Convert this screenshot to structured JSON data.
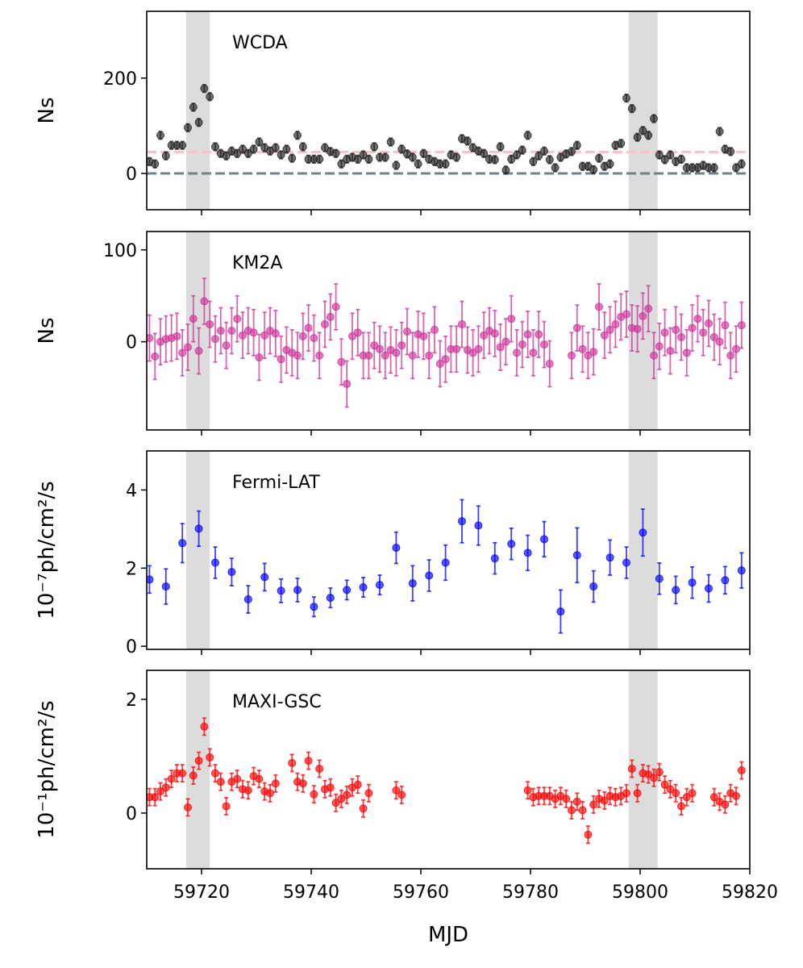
{
  "shaded_spans": [
    [
      59717.2,
      59721.5
    ],
    [
      59797.9,
      59803.2
    ]
  ],
  "chart_data": [
    {
      "type": "scatter",
      "label": "WCDA",
      "ylabel": "Ns",
      "color": "#222222",
      "xlim": [
        59710,
        59820
      ],
      "xticks": [
        59720,
        59740,
        59760,
        59780,
        59800,
        59820
      ],
      "ylim": [
        -76,
        340
      ],
      "yticks": [
        0,
        200
      ],
      "error": 8,
      "hlines": [
        {
          "value": 0,
          "color": "#708090"
        },
        {
          "value": 45,
          "color": "#ffc0cb"
        }
      ],
      "x": [
        59710.5,
        59711.5,
        59712.5,
        59713.5,
        59714.5,
        59715.5,
        59716.5,
        59717.5,
        59718.5,
        59719.5,
        59720.5,
        59721.5,
        59722.5,
        59723.5,
        59724.5,
        59725.5,
        59726.5,
        59727.5,
        59728.5,
        59729.5,
        59730.5,
        59731.5,
        59732.5,
        59733.5,
        59734.5,
        59735.5,
        59736.5,
        59737.5,
        59738.5,
        59739.5,
        59740.5,
        59741.5,
        59742.5,
        59743.5,
        59744.5,
        59745.5,
        59746.5,
        59747.5,
        59748.5,
        59749.5,
        59750.5,
        59751.5,
        59752.5,
        59753.5,
        59754.5,
        59755.5,
        59756.5,
        59757.5,
        59758.5,
        59759.5,
        59760.5,
        59761.5,
        59762.5,
        59763.5,
        59764.5,
        59765.5,
        59766.5,
        59767.5,
        59768.5,
        59769.5,
        59770.5,
        59771.5,
        59772.5,
        59773.5,
        59774.5,
        59775.5,
        59776.5,
        59777.5,
        59778.5,
        59779.5,
        59780.5,
        59781.5,
        59782.5,
        59783.5,
        59784.5,
        59785.5,
        59786.5,
        59787.5,
        59788.5,
        59789.5,
        59790.5,
        59791.5,
        59792.5,
        59793.5,
        59794.5,
        59795.5,
        59796.5,
        59797.5,
        59798.5,
        59799.5,
        59800.5,
        59801.5,
        59802.5,
        59803.5,
        59804.5,
        59805.5,
        59806.5,
        59807.5,
        59808.5,
        59809.5,
        59810.5,
        59811.5,
        59812.5,
        59813.5,
        59814.5,
        59815.5,
        59816.5,
        59817.5,
        59818.5
      ],
      "values": [
        25,
        20,
        80,
        37,
        59,
        59,
        59,
        96,
        139,
        107,
        178,
        161,
        56,
        42,
        37,
        47,
        42,
        51,
        42,
        51,
        66,
        54,
        47,
        54,
        39,
        51,
        32,
        80,
        56,
        30,
        30,
        30,
        54,
        46,
        42,
        20,
        30,
        34,
        30,
        39,
        30,
        56,
        34,
        34,
        66,
        17,
        51,
        41,
        34,
        20,
        42,
        30,
        25,
        20,
        20,
        39,
        34,
        73,
        68,
        54,
        47,
        42,
        30,
        29,
        56,
        7,
        30,
        39,
        49,
        80,
        25,
        37,
        47,
        29,
        12,
        34,
        41,
        46,
        59,
        15,
        15,
        8,
        32,
        15,
        20,
        59,
        63,
        158,
        136,
        76,
        90,
        80,
        115,
        39,
        29,
        39,
        25,
        30,
        12,
        12,
        12,
        17,
        12,
        12,
        88,
        51,
        46,
        12,
        20
      ]
    },
    {
      "type": "scatter",
      "label": "KM2A",
      "ylabel": "Ns",
      "color": "#cc3399",
      "xlim": [
        59710,
        59820
      ],
      "xticks": [
        59720,
        59740,
        59760,
        59780,
        59800,
        59820
      ],
      "ylim": [
        -96,
        120
      ],
      "yticks": [
        0,
        100
      ],
      "error": 25,
      "x": [
        59710.5,
        59711.5,
        59712.5,
        59713.5,
        59714.5,
        59715.5,
        59716.5,
        59717.5,
        59718.5,
        59719.5,
        59720.5,
        59721.5,
        59722.5,
        59723.5,
        59724.5,
        59725.5,
        59726.5,
        59727.5,
        59728.5,
        59729.5,
        59730.5,
        59731.5,
        59732.5,
        59733.5,
        59734.5,
        59735.5,
        59736.5,
        59737.5,
        59738.5,
        59739.5,
        59740.5,
        59741.5,
        59742.5,
        59743.5,
        59744.5,
        59745.5,
        59746.5,
        59747.5,
        59748.5,
        59749.5,
        59750.5,
        59751.5,
        59752.5,
        59753.5,
        59754.5,
        59755.5,
        59756.5,
        59757.5,
        59758.5,
        59759.5,
        59760.5,
        59761.5,
        59762.5,
        59763.5,
        59764.5,
        59765.5,
        59766.5,
        59767.5,
        59768.5,
        59769.5,
        59770.5,
        59771.5,
        59772.5,
        59773.5,
        59774.5,
        59775.5,
        59776.5,
        59777.5,
        59778.5,
        59779.5,
        59780.5,
        59781.5,
        59782.5,
        59783.5,
        59784.5,
        59785.5,
        59786.5,
        59787.5,
        59788.5,
        59789.5,
        59790.5,
        59791.5,
        59792.5,
        59793.5,
        59794.5,
        59795.5,
        59796.5,
        59797.5,
        59798.5,
        59799.5,
        59800.5,
        59801.5,
        59802.5,
        59803.5,
        59804.5,
        59805.5,
        59806.5,
        59807.5,
        59808.5,
        59809.5,
        59810.5,
        59811.5,
        59812.5,
        59813.5,
        59814.5,
        59815.5,
        59816.5,
        59817.5,
        59818.5
      ],
      "values": [
        4,
        -16,
        0,
        3,
        4,
        6,
        -12,
        -6,
        25,
        -10,
        44,
        19,
        3,
        12,
        -4,
        12,
        25,
        7,
        12,
        10,
        -17,
        7,
        12,
        9,
        -19,
        -9,
        -12,
        -15,
        6,
        15,
        4,
        -15,
        19,
        27,
        38,
        -22,
        -46,
        6,
        10,
        -15,
        -15,
        -4,
        -8,
        -15,
        -9,
        -12,
        -4,
        11,
        -15,
        8,
        6,
        -15,
        13,
        -24,
        -19,
        -8,
        -8,
        19,
        -9,
        -12,
        -8,
        7,
        12,
        9,
        -6,
        0,
        25,
        -12,
        -3,
        8,
        -12,
        8,
        -3,
        -24,
        null,
        null,
        null,
        -15,
        15,
        -8,
        -15,
        -11,
        38,
        7,
        13,
        19,
        27,
        30,
        15,
        14,
        28,
        36,
        -15,
        -5,
        10,
        -10,
        13,
        5,
        -12,
        15,
        25,
        10,
        20,
        5,
        0,
        18,
        -15,
        -8,
        18
      ]
    },
    {
      "type": "scatter",
      "label": "Fermi-LAT",
      "ylabel": "10⁻⁷ph/cm²/s",
      "color": "#0000ff",
      "xlim": [
        59710,
        59820
      ],
      "xticks": [
        59720,
        59740,
        59760,
        59780,
        59800,
        59820
      ],
      "ylim": [
        -0.08,
        5
      ],
      "yticks": [
        0,
        2,
        4
      ],
      "x": [
        59710.5,
        59713.5,
        59716.5,
        59719.5,
        59722.5,
        59725.5,
        59728.5,
        59731.5,
        59734.5,
        59737.5,
        59740.5,
        59743.5,
        59746.5,
        59749.5,
        59752.5,
        59755.5,
        59758.5,
        59761.5,
        59764.5,
        59767.5,
        59770.5,
        59773.5,
        59776.5,
        59779.5,
        59782.5,
        59785.5,
        59788.5,
        59791.5,
        59794.5,
        59797.5,
        59800.5,
        59803.5,
        59806.5,
        59809.5,
        59812.5,
        59815.5,
        59818.5
      ],
      "values": [
        1.71,
        1.53,
        2.64,
        3.01,
        2.14,
        1.9,
        1.2,
        1.77,
        1.42,
        1.44,
        1.01,
        1.24,
        1.44,
        1.51,
        1.57,
        2.52,
        1.61,
        1.81,
        2.14,
        3.2,
        3.09,
        2.25,
        2.62,
        2.39,
        2.74,
        0.89,
        2.33,
        1.53,
        2.27,
        2.14,
        2.91,
        1.73,
        1.44,
        1.63,
        1.48,
        1.69,
        1.94
      ],
      "errors": [
        0.35,
        0.45,
        0.5,
        0.45,
        0.4,
        0.35,
        0.35,
        0.35,
        0.3,
        0.3,
        0.25,
        0.25,
        0.25,
        0.25,
        0.25,
        0.4,
        0.45,
        0.4,
        0.45,
        0.55,
        0.5,
        0.4,
        0.4,
        0.45,
        0.45,
        0.55,
        0.7,
        0.4,
        0.45,
        0.4,
        0.6,
        0.4,
        0.35,
        0.4,
        0.35,
        0.35,
        0.45
      ]
    },
    {
      "type": "scatter",
      "label": "MAXI-GSC",
      "ylabel": "10⁻¹ph/cm²/s",
      "xlabel": "MJD",
      "color": "#ff0000",
      "xlim": [
        59710,
        59820
      ],
      "xticks": [
        59720,
        59740,
        59760,
        59780,
        59800,
        59820
      ],
      "ylim": [
        -0.98,
        2.51
      ],
      "yticks": [
        0,
        2
      ],
      "error": 0.15,
      "x": [
        59710.5,
        59711.5,
        59712.5,
        59713.5,
        59714.5,
        59715.5,
        59716.5,
        59717.5,
        59718.5,
        59719.5,
        59720.5,
        59721.5,
        59722.5,
        59723.5,
        59724.5,
        59725.5,
        59726.5,
        59727.5,
        59728.5,
        59729.5,
        59730.5,
        59731.5,
        59732.5,
        59733.5,
        59734.5,
        59735.5,
        59736.5,
        59737.5,
        59738.5,
        59739.5,
        59740.5,
        59741.5,
        59742.5,
        59743.5,
        59744.5,
        59745.5,
        59746.5,
        59747.5,
        59748.5,
        59749.5,
        59750.5,
        59751.5,
        59752.5,
        59753.5,
        59754.5,
        59755.5,
        59756.5,
        59757.5,
        59758.5,
        59759.5,
        59760.5,
        59761.5,
        59762.5,
        59763.5,
        59764.5,
        59765.5,
        59766.5,
        59767.5,
        59768.5,
        59769.5,
        59770.5,
        59771.5,
        59772.5,
        59773.5,
        59774.5,
        59775.5,
        59776.5,
        59777.5,
        59778.5,
        59779.5,
        59780.5,
        59781.5,
        59782.5,
        59783.5,
        59784.5,
        59785.5,
        59786.5,
        59787.5,
        59788.5,
        59789.5,
        59790.5,
        59791.5,
        59792.5,
        59793.5,
        59794.5,
        59795.5,
        59796.5,
        59797.5,
        59798.5,
        59799.5,
        59800.5,
        59801.5,
        59802.5,
        59803.5,
        59804.5,
        59805.5,
        59806.5,
        59807.5,
        59808.5,
        59809.5,
        59810.5,
        59811.5,
        59812.5,
        59813.5,
        59814.5,
        59815.5,
        59816.5,
        59817.5,
        59818.5
      ],
      "values": [
        0.28,
        0.28,
        0.38,
        0.45,
        0.6,
        0.7,
        0.7,
        0.1,
        0.66,
        0.92,
        1.52,
        0.98,
        0.7,
        0.55,
        0.12,
        0.55,
        0.6,
        0.42,
        0.4,
        0.65,
        0.6,
        0.38,
        0.35,
        0.52,
        null,
        null,
        0.88,
        0.55,
        0.52,
        0.92,
        0.33,
        0.78,
        0.42,
        0.45,
        0.18,
        0.25,
        0.32,
        0.45,
        0.5,
        0.08,
        0.35,
        null,
        null,
        null,
        null,
        0.4,
        0.32,
        null,
        null,
        null,
        null,
        null,
        null,
        null,
        null,
        null,
        null,
        null,
        null,
        null,
        null,
        null,
        null,
        null,
        null,
        null,
        null,
        null,
        null,
        0.4,
        0.28,
        0.3,
        0.3,
        0.3,
        0.25,
        0.3,
        0.25,
        0.05,
        0.2,
        0.05,
        -0.38,
        0.15,
        0.25,
        0.22,
        0.3,
        0.28,
        0.3,
        0.35,
        0.78,
        0.35,
        0.7,
        0.68,
        0.62,
        0.72,
        0.5,
        0.42,
        0.35,
        0.12,
        0.28,
        0.35,
        null,
        null,
        null,
        0.28,
        0.2,
        0.15,
        0.35,
        0.3,
        0.75
      ]
    }
  ]
}
